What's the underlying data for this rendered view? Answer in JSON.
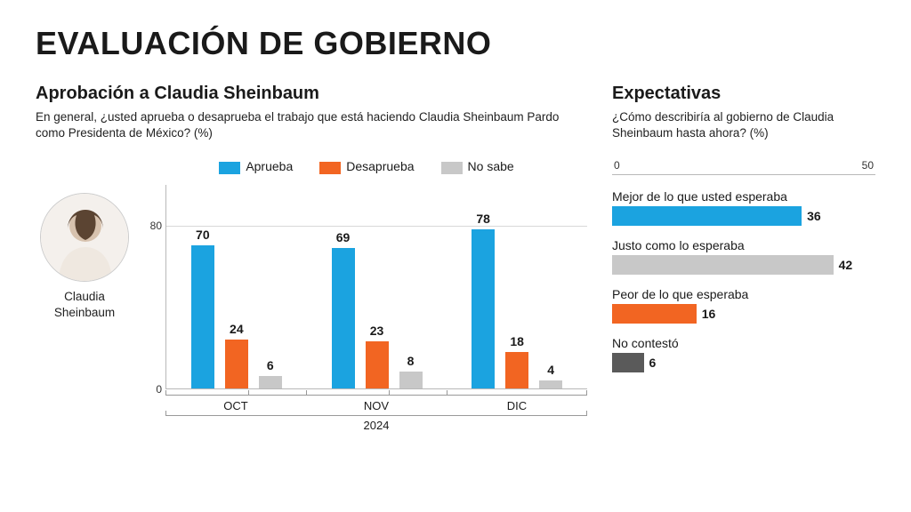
{
  "title": "EVALUACIÓN DE GOBIERNO",
  "colors": {
    "approve": "#1ba3e0",
    "disapprove": "#f26522",
    "dontknow": "#c8c8c8",
    "noanswer": "#5a5a5a",
    "gridline": "#d8d8d8",
    "axis": "#b8b8b8"
  },
  "left": {
    "section_title": "Aprobación a Claudia Sheinbaum",
    "question": "En general, ¿usted aprueba o desaprueba el trabajo que está haciendo Claudia Sheinbaum Pardo como Presidenta de México?  (%)",
    "portrait_name": "Claudia Sheinbaum",
    "legend": {
      "approve": "Aprueba",
      "disapprove": "Desaprueba",
      "dontknow": "No sabe"
    },
    "chart": {
      "type": "grouped-bar",
      "ymax": 100,
      "ytick_80": "80",
      "ytick_0": "0",
      "year": "2024",
      "months": [
        {
          "label": "OCT",
          "approve": 70,
          "disapprove": 24,
          "dontknow": 6
        },
        {
          "label": "NOV",
          "approve": 69,
          "disapprove": 23,
          "dontknow": 8
        },
        {
          "label": "DIC",
          "approve": 78,
          "disapprove": 18,
          "dontknow": 4
        }
      ]
    }
  },
  "right": {
    "section_title": "Expectativas",
    "question": "¿Cómo describiría al gobierno de Claudia Sheinbaum hasta ahora?  (%)",
    "chart": {
      "type": "hbar",
      "xmax": 50,
      "xtick_0": "0",
      "xtick_50": "50",
      "rows": [
        {
          "label": "Mejor de lo que usted esperaba",
          "value": 36,
          "color_key": "approve"
        },
        {
          "label": "Justo como lo esperaba",
          "value": 42,
          "color_key": "dontknow"
        },
        {
          "label": "Peor de lo que esperaba",
          "value": 16,
          "color_key": "disapprove"
        },
        {
          "label": "No contestó",
          "value": 6,
          "color_key": "noanswer"
        }
      ]
    }
  }
}
